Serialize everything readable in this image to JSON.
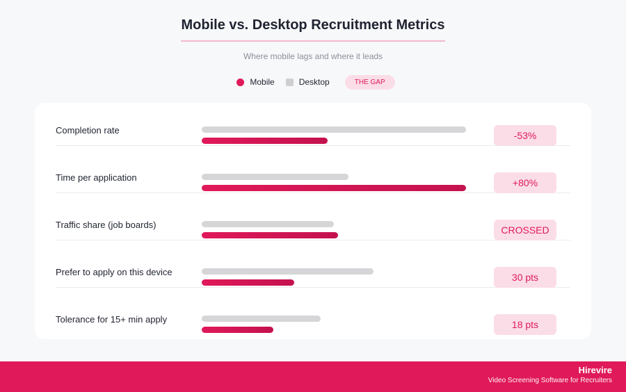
{
  "header": {
    "title": "Mobile vs. Desktop Recruitment Metrics",
    "subtitle": "Where mobile lags and where it leads"
  },
  "legend": {
    "mobile_label": "Mobile",
    "desktop_label": "Desktop",
    "gap_label": "THE GAP"
  },
  "colors": {
    "mobile": "#e0195a",
    "desktop": "#d6d6d9",
    "gap_background": "#fbdde7",
    "footer": "#e0195a"
  },
  "chart_data": {
    "type": "bar",
    "orientation": "horizontal",
    "title": "Mobile vs. Desktop Recruitment Metrics",
    "subtitle": "Where mobile lags and where it leads",
    "categories": [
      "Completion rate",
      "Time per application",
      "Traffic share (job boards)",
      "Prefer to apply on this device",
      "Tolerance for 15+ min apply"
    ],
    "series": [
      {
        "name": "Desktop",
        "values": [
          100,
          55.5,
          50,
          65,
          45
        ]
      },
      {
        "name": "Mobile",
        "values": [
          47.5,
          100,
          51.5,
          35,
          27
        ]
      }
    ],
    "xlim": [
      0,
      100
    ],
    "units": "relative (longest bar = 100)",
    "gap_labels": [
      "-53%",
      "+80%",
      "CROSSED",
      "30 pts",
      "18 pts"
    ],
    "grid": false,
    "legend": "top-center"
  },
  "footer": {
    "brand": "Hirevire",
    "tagline": "Video Screening Software for Recruiters"
  }
}
